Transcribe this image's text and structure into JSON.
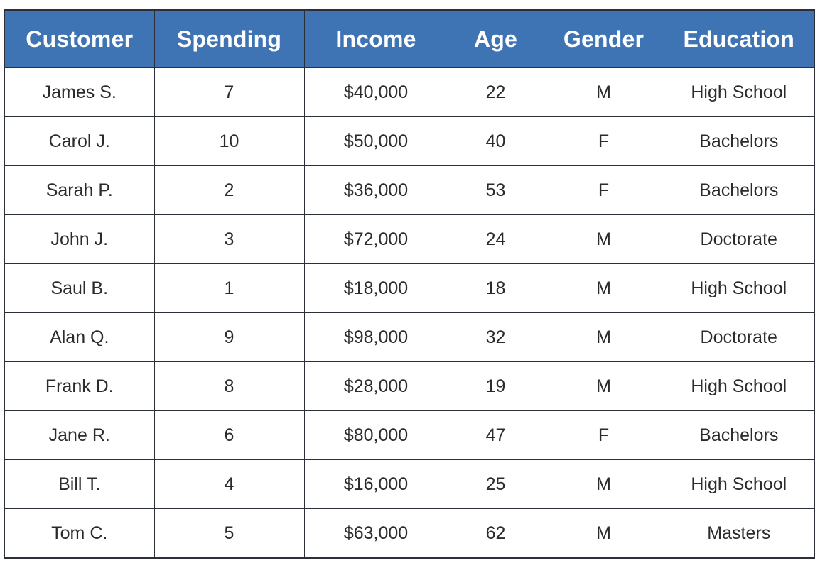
{
  "table": {
    "header_color": "#3f74b4",
    "columns": [
      "Customer",
      "Spending",
      "Income",
      "Age",
      "Gender",
      "Education"
    ],
    "rows": [
      [
        "James S.",
        "7",
        "$40,000",
        "22",
        "M",
        "High School"
      ],
      [
        "Carol J.",
        "10",
        "$50,000",
        "40",
        "F",
        "Bachelors"
      ],
      [
        "Sarah P.",
        "2",
        "$36,000",
        "53",
        "F",
        "Bachelors"
      ],
      [
        "John J.",
        "3",
        "$72,000",
        "24",
        "M",
        "Doctorate"
      ],
      [
        "Saul B.",
        "1",
        "$18,000",
        "18",
        "M",
        "High School"
      ],
      [
        "Alan Q.",
        "9",
        "$98,000",
        "32",
        "M",
        "Doctorate"
      ],
      [
        "Frank D.",
        "8",
        "$28,000",
        "19",
        "M",
        "High School"
      ],
      [
        "Jane R.",
        "6",
        "$80,000",
        "47",
        "F",
        "Bachelors"
      ],
      [
        "Bill T.",
        "4",
        "$16,000",
        "25",
        "M",
        "High School"
      ],
      [
        "Tom C.",
        "5",
        "$63,000",
        "62",
        "M",
        "Masters"
      ]
    ]
  }
}
